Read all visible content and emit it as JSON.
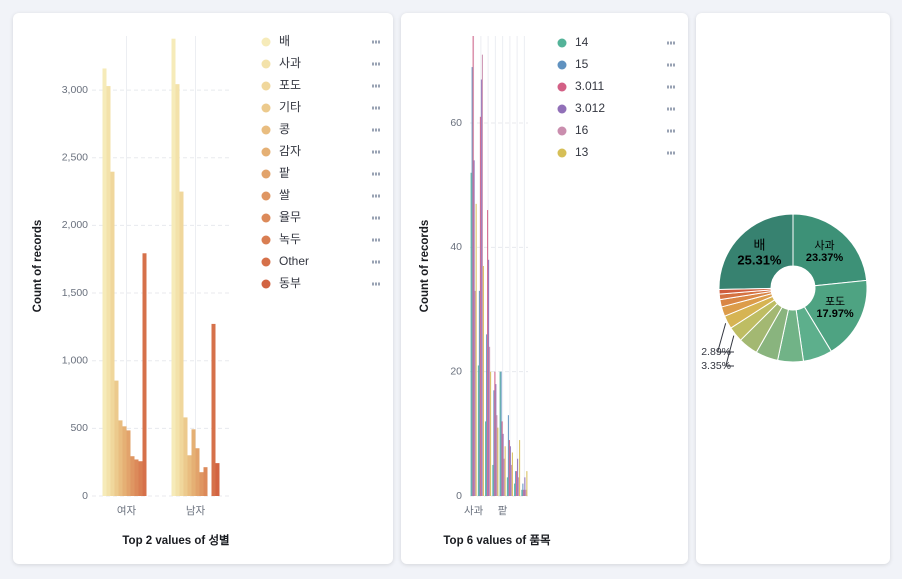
{
  "chart_data": [
    {
      "type": "bar",
      "title": "Top 2 values of 성별",
      "y_label": "Count of records",
      "categories": [
        "여자",
        "남자"
      ],
      "series": [
        {
          "name": "배",
          "color": "#f6ebb9",
          "values": [
            3160,
            3380
          ]
        },
        {
          "name": "사과",
          "color": "#f3e2aa",
          "values": [
            3030,
            3044
          ]
        },
        {
          "name": "포도",
          "color": "#f0d79c",
          "values": [
            2397,
            2250
          ]
        },
        {
          "name": "기타",
          "color": "#ecca8d",
          "values": [
            853,
            581
          ]
        },
        {
          "name": "콩",
          "color": "#e9bd80",
          "values": [
            559,
            301
          ]
        },
        {
          "name": "감자",
          "color": "#e5b074",
          "values": [
            515,
            493
          ]
        },
        {
          "name": "팥",
          "color": "#e2a36b",
          "values": [
            485,
            353
          ]
        },
        {
          "name": "쌀",
          "color": "#df9662",
          "values": [
            294,
            176
          ]
        },
        {
          "name": "율무",
          "color": "#dc8a5a",
          "values": [
            270,
            213
          ]
        },
        {
          "name": "녹두",
          "color": "#d97e52",
          "values": [
            257,
            null
          ]
        },
        {
          "name": "Other",
          "color": "#d6714a",
          "values": [
            1794,
            1272
          ]
        },
        {
          "name": "동부",
          "color": "#d26442",
          "values": [
            null,
            243
          ]
        }
      ],
      "ylim": [
        0,
        3400
      ],
      "yticks": [
        0,
        500,
        {
          "value": 1000,
          "label": "1,000"
        },
        {
          "value": 1500,
          "label": "1,500"
        },
        {
          "value": 2000,
          "label": "2,000"
        },
        {
          "value": 2500,
          "label": "2,500"
        },
        {
          "value": 3000,
          "label": "3,000"
        }
      ],
      "grid": true
    },
    {
      "type": "bar",
      "title": "Top 6 values of 품목",
      "y_label": "Count of records",
      "categories": [
        "사과",
        null,
        null,
        null,
        "팥",
        null,
        null,
        null
      ],
      "series": [
        {
          "name": "14",
          "color": "#54b399",
          "values": [
            52,
            21,
            12,
            5,
            20,
            3,
            2,
            1
          ]
        },
        {
          "name": "15",
          "color": "#6092c0",
          "values": [
            69,
            33,
            26,
            17,
            20,
            13,
            4,
            2
          ]
        },
        {
          "name": "3.011",
          "color": "#d36086",
          "values": [
            74,
            61,
            46,
            20,
            12,
            9,
            4,
            1
          ]
        },
        {
          "name": "3.012",
          "color": "#9170b8",
          "values": [
            54,
            67,
            38,
            18,
            10,
            8,
            6,
            3
          ]
        },
        {
          "name": "16",
          "color": "#ca8eae",
          "values": [
            33,
            71,
            24,
            13,
            6,
            5,
            3,
            1
          ]
        },
        {
          "name": "13",
          "color": "#d6bf57",
          "values": [
            47,
            37,
            20,
            11,
            8,
            7,
            9,
            4
          ]
        }
      ],
      "ylim": [
        0,
        74
      ],
      "yticks": [
        0,
        20,
        40,
        60
      ],
      "grid": true
    },
    {
      "type": "pie",
      "categories": [
        "배",
        "사과",
        "포도",
        null,
        null,
        null,
        null,
        null,
        null,
        null,
        null,
        null,
        null
      ],
      "values": [
        25.31,
        23.37,
        17.97,
        6.4,
        5.6,
        4.9,
        4.3,
        3.35,
        2.89,
        2.1,
        1.6,
        1.2,
        1.01
      ],
      "value_labels": [
        "25.31%",
        "23.37%",
        "17.97%",
        null,
        null,
        null,
        null,
        "3.35%",
        "2.89%",
        null,
        null,
        null,
        null
      ],
      "colors": [
        "#378270",
        "#3d9177",
        "#4ea382",
        "#5daf8c",
        "#71b387",
        "#89b47e",
        "#a3b872",
        "#bebd63",
        "#d6b453",
        "#dc9c4a",
        "#d98645",
        "#d57241",
        "#cf5d3d"
      ],
      "donut": true
    }
  ]
}
